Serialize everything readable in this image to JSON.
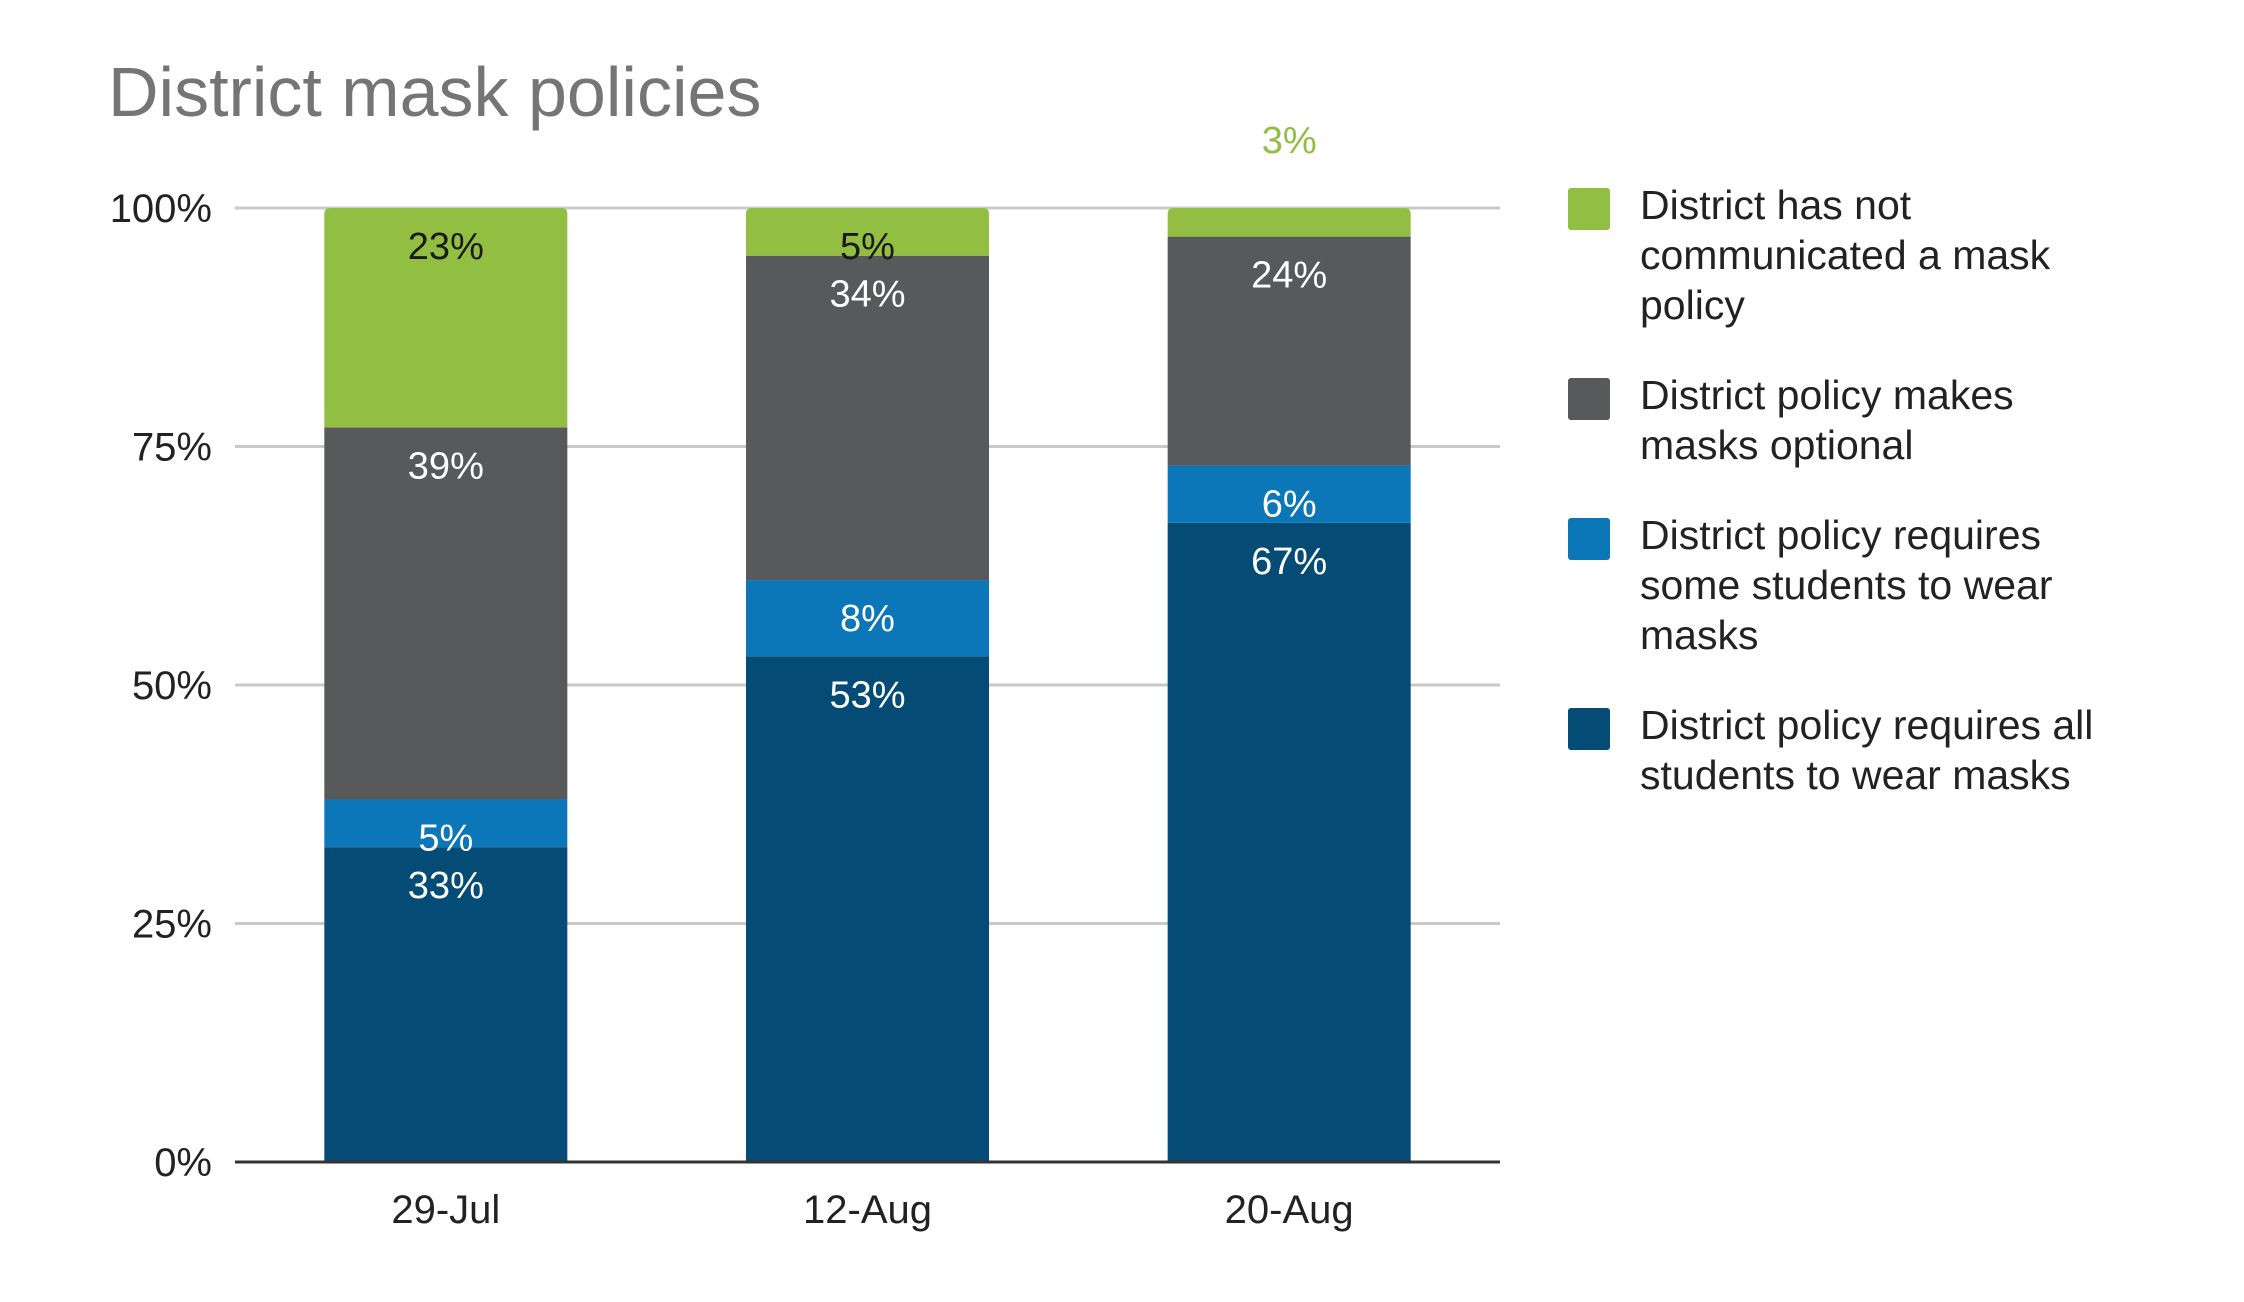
{
  "title": "District mask policies",
  "chart_data": {
    "type": "bar",
    "stacked": true,
    "title": "District mask policies",
    "categories": [
      "29-Jul",
      "12-Aug",
      "20-Aug"
    ],
    "ylim": [
      0,
      100
    ],
    "y_ticks": [
      "0%",
      "25%",
      "50%",
      "75%",
      "100%"
    ],
    "y_tick_values": [
      0,
      25,
      50,
      75,
      100
    ],
    "grid": true,
    "legend_position": "right",
    "series": [
      {
        "name": "District policy requires all students to wear masks",
        "values": [
          33,
          53,
          67
        ],
        "labels": [
          "33%",
          "53%",
          "67%"
        ],
        "color": "#044b75"
      },
      {
        "name": "District policy requires some students to wear masks",
        "values": [
          5,
          8,
          6
        ],
        "labels": [
          "5%",
          "8%",
          "6%"
        ],
        "color": "#0b77b9"
      },
      {
        "name": "District policy makes masks optional",
        "values": [
          39,
          34,
          24
        ],
        "labels": [
          "39%",
          "34%",
          "24%"
        ],
        "color": "#58595b"
      },
      {
        "name": "District has not communicated a mask policy",
        "values": [
          23,
          5,
          3
        ],
        "labels": [
          "23%",
          "5%",
          "3%"
        ],
        "color": "#92be42"
      }
    ]
  },
  "legend": {
    "items": [
      {
        "label": "District has not communicated a mask policy",
        "color": "#92be42"
      },
      {
        "label": "District policy makes masks optional",
        "color": "#58595b"
      },
      {
        "label": "District policy requires some students to wear masks",
        "color": "#0b77b9"
      },
      {
        "label": "District policy requires all students to wear masks",
        "color": "#044b75"
      }
    ]
  }
}
